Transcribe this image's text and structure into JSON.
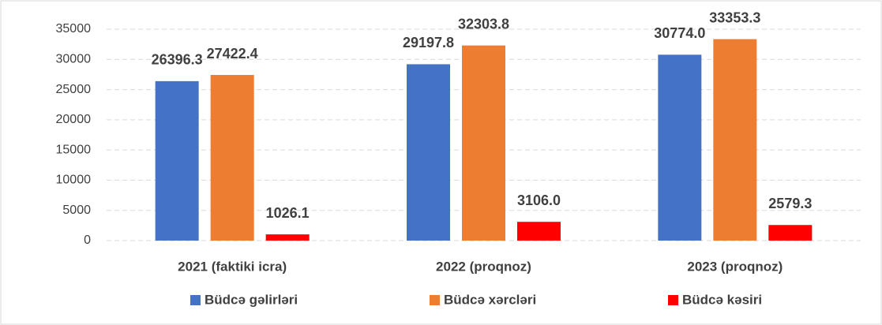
{
  "chart_data": {
    "type": "bar",
    "categories": [
      "2021 (faktiki icra)",
      "2022 (proqnoz)",
      "2023 (proqnoz)"
    ],
    "series": [
      {
        "name": "Büdcə gəlirləri",
        "color": "#4472c4",
        "values": [
          26396.3,
          29197.8,
          30774.0
        ],
        "value_labels": [
          "26396.3",
          "29197.8",
          "30774.0"
        ]
      },
      {
        "name": "Büdcə xərcləri",
        "color": "#ed7d31",
        "values": [
          27422.4,
          32303.8,
          33353.3
        ],
        "value_labels": [
          "27422.4",
          "32303.8",
          "33353.3"
        ]
      },
      {
        "name": "Büdcə kəsiri",
        "color": "#ff0000",
        "values": [
          1026.1,
          3106.0,
          2579.3
        ],
        "value_labels": [
          "1026.1",
          "3106.0",
          "2579.3"
        ]
      }
    ],
    "ylim": [
      0,
      35000
    ],
    "yticks": [
      0,
      5000,
      10000,
      15000,
      20000,
      25000,
      30000,
      35000
    ],
    "grid": true,
    "legend": "bottom"
  }
}
